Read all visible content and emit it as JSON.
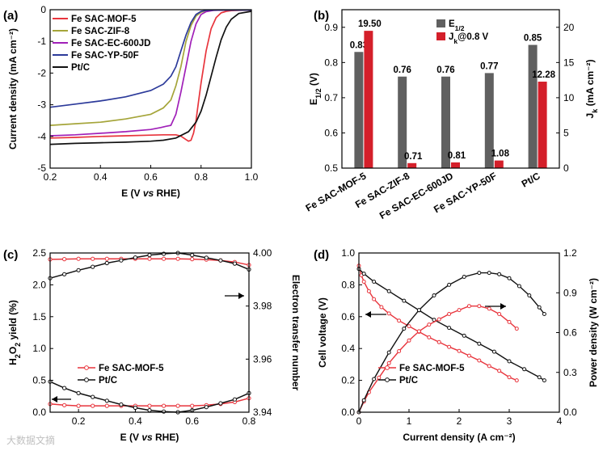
{
  "watermark": "大数据文摘",
  "chart_data": [
    {
      "panel": "(a)",
      "type": "line",
      "xlabel": "E (V vs RHE)",
      "ylabel": "Current density (mA cm⁻²)",
      "xlim": [
        0.2,
        1.0
      ],
      "ylim": [
        -5,
        0
      ],
      "xticks": [
        "0.2",
        "0.4",
        "0.6",
        "0.8",
        "1.0"
      ],
      "yticks": [
        "-5",
        "-4",
        "-3",
        "-2",
        "-1",
        "0"
      ],
      "legend_position": "top-left",
      "series": [
        {
          "name": "Fe SAC-MOF-5",
          "color": "#e8343c",
          "x": [
            0.2,
            0.3,
            0.4,
            0.5,
            0.6,
            0.65,
            0.7,
            0.72,
            0.74,
            0.75,
            0.76,
            0.77,
            0.78,
            0.79,
            0.8,
            0.82,
            0.84,
            0.86,
            0.88,
            0.9,
            0.92,
            0.95,
            1.0
          ],
          "y": [
            -4.05,
            -4.03,
            -4.0,
            -3.98,
            -3.96,
            -3.95,
            -3.95,
            -3.99,
            -4.1,
            -4.15,
            -4.12,
            -3.9,
            -3.5,
            -2.9,
            -2.3,
            -1.3,
            -0.6,
            -0.25,
            -0.1,
            -0.05,
            -0.03,
            -0.02,
            -0.01
          ]
        },
        {
          "name": "Fe SAC-ZIF-8",
          "color": "#a5a53a",
          "x": [
            0.2,
            0.3,
            0.4,
            0.5,
            0.6,
            0.65,
            0.68,
            0.7,
            0.72,
            0.74,
            0.76,
            0.78,
            0.8,
            0.82,
            0.85,
            0.9,
            1.0
          ],
          "y": [
            -3.65,
            -3.6,
            -3.55,
            -3.45,
            -3.3,
            -3.1,
            -2.85,
            -2.4,
            -1.8,
            -1.0,
            -0.5,
            -0.2,
            -0.08,
            -0.03,
            -0.02,
            -0.01,
            -0.01
          ]
        },
        {
          "name": "Fe SAC-EC-600JD",
          "color": "#a020b8",
          "x": [
            0.2,
            0.3,
            0.4,
            0.5,
            0.6,
            0.64,
            0.66,
            0.68,
            0.7,
            0.72,
            0.74,
            0.76,
            0.78,
            0.8,
            0.82,
            0.85,
            0.9,
            1.0
          ],
          "y": [
            -3.98,
            -3.95,
            -3.9,
            -3.85,
            -3.78,
            -3.72,
            -3.68,
            -3.65,
            -3.3,
            -2.6,
            -1.8,
            -1.0,
            -0.45,
            -0.15,
            -0.06,
            -0.02,
            -0.01,
            -0.01
          ]
        },
        {
          "name": "Fe SAC-YP-50F",
          "color": "#2c3a9a",
          "x": [
            0.2,
            0.3,
            0.4,
            0.5,
            0.6,
            0.65,
            0.68,
            0.7,
            0.72,
            0.74,
            0.76,
            0.78,
            0.8,
            0.82,
            0.85,
            0.9,
            1.0
          ],
          "y": [
            -3.08,
            -2.98,
            -2.88,
            -2.75,
            -2.55,
            -2.35,
            -2.1,
            -1.8,
            -1.3,
            -0.8,
            -0.4,
            -0.15,
            -0.05,
            -0.02,
            -0.01,
            -0.01,
            -0.01
          ]
        },
        {
          "name": "Pt/C",
          "color": "#111111",
          "x": [
            0.2,
            0.3,
            0.4,
            0.5,
            0.6,
            0.65,
            0.7,
            0.75,
            0.78,
            0.8,
            0.82,
            0.84,
            0.86,
            0.88,
            0.9,
            0.92,
            0.95,
            1.0
          ],
          "y": [
            -4.25,
            -4.22,
            -4.2,
            -4.18,
            -4.15,
            -4.12,
            -4.05,
            -3.85,
            -3.55,
            -3.2,
            -2.7,
            -2.1,
            -1.5,
            -0.95,
            -0.55,
            -0.3,
            -0.12,
            -0.05
          ]
        }
      ]
    },
    {
      "panel": "(b)",
      "type": "bar",
      "ylabel_left": "E",
      "ylabel_left_sub": "1/2",
      "ylabel_left_unit": " (V)",
      "ylabel_right": "J",
      "ylabel_right_sub": "k",
      "ylabel_right_unit": " (mA cm⁻²)",
      "categories": [
        "Fe SAC-MOF-5",
        "Fe SAC-ZIF-8",
        "Fe SAC-EC-600JD",
        "Fe SAC-YP-50F",
        "Pt/C"
      ],
      "ylim_left": [
        0.5,
        0.95
      ],
      "ylim_right": [
        0,
        22.5
      ],
      "yticks_left": [
        "0.5",
        "0.6",
        "0.7",
        "0.8",
        "0.9"
      ],
      "yticks_right": [
        "0",
        "5",
        "10",
        "15",
        "20"
      ],
      "legend_position": "top-center",
      "series": [
        {
          "name": "E",
          "name_sub": "1/2",
          "name_suffix": "",
          "color": "#606060",
          "axis": "left",
          "values": [
            0.83,
            0.76,
            0.76,
            0.77,
            0.85
          ],
          "labels": [
            "0.83",
            "0.76",
            "0.76",
            "0.77",
            "0.85"
          ]
        },
        {
          "name": "J",
          "name_sub": "k",
          "name_suffix": "@0.8 V",
          "color": "#d41f2a",
          "axis": "right",
          "values": [
            19.5,
            0.71,
            0.81,
            1.08,
            12.28
          ],
          "labels": [
            "19.50",
            "0.71",
            "0.81",
            "1.08",
            "12.28"
          ]
        }
      ]
    },
    {
      "panel": "(c)",
      "type": "line",
      "xlabel": "E (V vs RHE)",
      "ylabel_left": "H",
      "ylabel_left_parts": [
        "H",
        "2",
        "O",
        "2",
        " yield (%)"
      ],
      "ylabel_right": "Electron transfer number",
      "xlim": [
        0.1,
        0.8
      ],
      "ylim_left": [
        0,
        2.5
      ],
      "ylim_right": [
        3.94,
        4.0
      ],
      "xticks": [
        "0.2",
        "0.4",
        "0.6",
        "0.8"
      ],
      "yticks_left": [
        "0.0",
        "0.5",
        "1.0",
        "1.5",
        "2.0",
        "2.5"
      ],
      "yticks_right": [
        "3.94",
        "3.96",
        "3.98",
        "4.00"
      ],
      "legend_position": "bottom-left",
      "series": [
        {
          "name": "Fe SAC-MOF-5",
          "color": "#e8343c",
          "axis": "left",
          "kind": "yield",
          "x": [
            0.1,
            0.15,
            0.2,
            0.25,
            0.3,
            0.35,
            0.4,
            0.45,
            0.5,
            0.55,
            0.6,
            0.65,
            0.7,
            0.75,
            0.8
          ],
          "y": [
            0.13,
            0.11,
            0.1,
            0.1,
            0.1,
            0.1,
            0.1,
            0.1,
            0.1,
            0.1,
            0.1,
            0.11,
            0.13,
            0.16,
            0.22
          ]
        },
        {
          "name": "Pt/C",
          "color": "#111111",
          "axis": "left",
          "kind": "yield",
          "x": [
            0.1,
            0.15,
            0.2,
            0.25,
            0.3,
            0.35,
            0.4,
            0.45,
            0.5,
            0.55,
            0.6,
            0.65,
            0.7,
            0.75,
            0.8
          ],
          "y": [
            0.48,
            0.38,
            0.3,
            0.24,
            0.18,
            0.12,
            0.07,
            0.03,
            0.01,
            0.0,
            0.03,
            0.08,
            0.14,
            0.2,
            0.3
          ]
        },
        {
          "name": "Fe SAC-MOF-5",
          "color": "#e8343c",
          "axis": "right",
          "kind": "n",
          "x": [
            0.1,
            0.15,
            0.2,
            0.25,
            0.3,
            0.35,
            0.4,
            0.45,
            0.5,
            0.55,
            0.6,
            0.65,
            0.7,
            0.75,
            0.8
          ],
          "y": [
            3.9976,
            3.9977,
            3.9978,
            3.9978,
            3.9978,
            3.9978,
            3.9978,
            3.9978,
            3.9978,
            3.9978,
            3.9977,
            3.9975,
            3.9972,
            3.9966,
            3.9955
          ]
        },
        {
          "name": "Pt/C",
          "color": "#111111",
          "axis": "right",
          "kind": "n",
          "x": [
            0.1,
            0.15,
            0.2,
            0.25,
            0.3,
            0.35,
            0.4,
            0.45,
            0.5,
            0.55,
            0.6,
            0.65,
            0.7,
            0.75,
            0.8
          ],
          "y": [
            3.9905,
            3.992,
            3.9935,
            3.9948,
            3.9962,
            3.9972,
            3.9983,
            3.9992,
            3.9997,
            4.0,
            3.9992,
            3.9982,
            3.9972,
            3.996,
            3.9938
          ]
        }
      ]
    },
    {
      "panel": "(d)",
      "type": "line",
      "xlabel": "Current density (A cm⁻²)",
      "ylabel_left": "Cell voltage (V)",
      "ylabel_right": "Power density (W cm⁻²)",
      "xlim": [
        0,
        4
      ],
      "ylim_left": [
        0,
        1.0
      ],
      "ylim_right": [
        0,
        1.2
      ],
      "xticks": [
        "0",
        "1",
        "2",
        "3",
        "4"
      ],
      "yticks_left": [
        "0.0",
        "0.2",
        "0.4",
        "0.6",
        "0.8",
        "1.0"
      ],
      "yticks_right": [
        "0.0",
        "0.3",
        "0.6",
        "0.9",
        "1.2"
      ],
      "legend_position": "bottom-left",
      "series": [
        {
          "name": "Fe SAC-MOF-5",
          "color": "#e8343c",
          "axis": "left",
          "kind": "voltage",
          "x": [
            0.0,
            0.05,
            0.1,
            0.2,
            0.3,
            0.45,
            0.6,
            0.8,
            1.0,
            1.2,
            1.4,
            1.6,
            1.8,
            2.0,
            2.2,
            2.4,
            2.6,
            2.8,
            3.0,
            3.15
          ],
          "y": [
            0.92,
            0.86,
            0.82,
            0.76,
            0.71,
            0.66,
            0.62,
            0.575,
            0.54,
            0.505,
            0.47,
            0.44,
            0.41,
            0.385,
            0.355,
            0.325,
            0.29,
            0.26,
            0.22,
            0.2
          ]
        },
        {
          "name": "Pt/C",
          "color": "#111111",
          "axis": "left",
          "kind": "voltage",
          "x": [
            0.0,
            0.1,
            0.3,
            0.6,
            0.9,
            1.2,
            1.5,
            1.8,
            2.1,
            2.4,
            2.7,
            3.0,
            3.3,
            3.6,
            3.7
          ],
          "y": [
            0.9,
            0.87,
            0.82,
            0.76,
            0.7,
            0.64,
            0.58,
            0.53,
            0.48,
            0.43,
            0.38,
            0.32,
            0.27,
            0.22,
            0.2
          ]
        },
        {
          "name": "Fe SAC-MOF-5",
          "color": "#e8343c",
          "axis": "right",
          "kind": "power",
          "x": [
            0.0,
            0.1,
            0.2,
            0.4,
            0.6,
            0.8,
            1.0,
            1.2,
            1.4,
            1.6,
            1.8,
            2.0,
            2.2,
            2.4,
            2.6,
            2.8,
            3.0,
            3.15
          ],
          "y": [
            0.0,
            0.08,
            0.15,
            0.26,
            0.37,
            0.46,
            0.54,
            0.61,
            0.66,
            0.7,
            0.74,
            0.77,
            0.8,
            0.8,
            0.78,
            0.74,
            0.68,
            0.63
          ]
        },
        {
          "name": "Pt/C",
          "color": "#111111",
          "axis": "right",
          "kind": "power",
          "x": [
            0.0,
            0.1,
            0.3,
            0.6,
            0.9,
            1.2,
            1.5,
            1.8,
            2.1,
            2.4,
            2.6,
            2.8,
            3.0,
            3.2,
            3.4,
            3.6,
            3.7
          ],
          "y": [
            0.0,
            0.09,
            0.25,
            0.45,
            0.63,
            0.77,
            0.88,
            0.96,
            1.02,
            1.05,
            1.05,
            1.04,
            1.01,
            0.95,
            0.88,
            0.79,
            0.74
          ]
        }
      ]
    }
  ]
}
